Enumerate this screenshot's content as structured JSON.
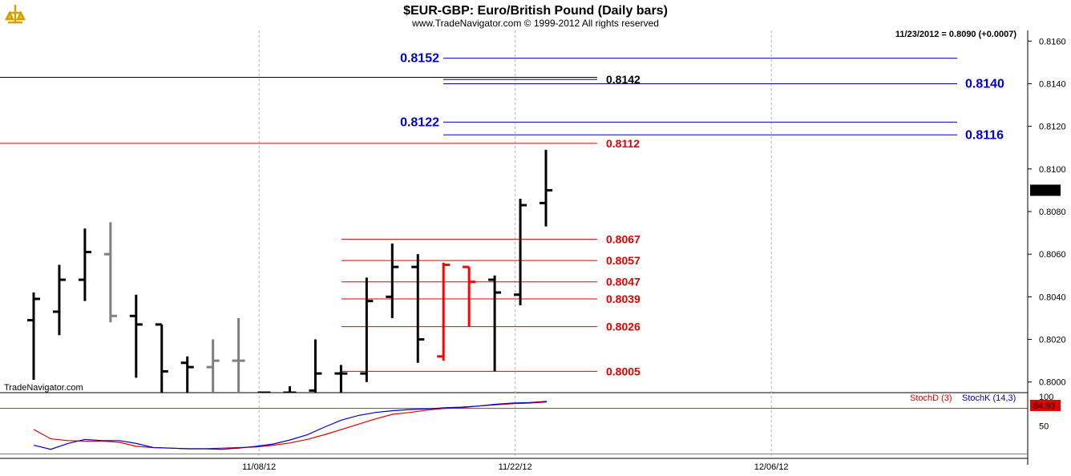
{
  "header": {
    "title": "$EUR-GBP:  Euro/British Pound  (Daily bars)",
    "copyright": "www.TradeNavigator.com © 1999-2012 All rights reserved",
    "last_quote": "11/23/2012 = 0.8090 (+0.0007)",
    "watermark": "TradeNavigator.com"
  },
  "colors": {
    "bar_black": "#000000",
    "bar_gray": "#808080",
    "bar_red": "#ff0000",
    "level_red": "#e00000",
    "level_blue": "#0000cc",
    "level_black": "#000000",
    "stoch_d": "#e00000",
    "stoch_k": "#0000cc",
    "axis_text_price": "#000080"
  },
  "chart_data": [
    {
      "type": "bar",
      "subtype": "ohlc",
      "title": "$EUR-GBP:  Euro/British Pound  (Daily bars)",
      "ylim": [
        0.7995,
        0.8165
      ],
      "yticks": [
        "0.8160",
        "0.8140",
        "0.8120",
        "0.8100",
        "0.8080",
        "0.8060",
        "0.8040",
        "0.8020",
        "0.8000"
      ],
      "last_price_label": "0.8090",
      "x_ticks": [
        {
          "label": "11/08/12",
          "index": 8.8
        },
        {
          "label": "11/22/12",
          "index": 18.8
        },
        {
          "label": "12/06/12",
          "index": 28.8
        }
      ],
      "bars": [
        {
          "o": 0.8029,
          "h": 0.8042,
          "l": 0.8001,
          "c": 0.8039,
          "color": "black"
        },
        {
          "o": 0.8033,
          "h": 0.8055,
          "l": 0.8022,
          "c": 0.8048,
          "color": "black"
        },
        {
          "o": 0.8048,
          "h": 0.8072,
          "l": 0.8038,
          "c": 0.8061,
          "color": "black"
        },
        {
          "o": 0.806,
          "h": 0.8075,
          "l": 0.8028,
          "c": 0.8031,
          "color": "gray"
        },
        {
          "o": 0.8031,
          "h": 0.8041,
          "l": 0.8002,
          "c": 0.8027,
          "color": "black"
        },
        {
          "o": 0.8027,
          "h": 0.8027,
          "l": 0.799,
          "c": 0.8005,
          "color": "black"
        },
        {
          "o": 0.8009,
          "h": 0.8012,
          "l": 0.799,
          "c": 0.8007,
          "color": "black"
        },
        {
          "o": 0.8007,
          "h": 0.802,
          "l": 0.799,
          "c": 0.801,
          "color": "gray"
        },
        {
          "o": 0.801,
          "h": 0.803,
          "l": 0.799,
          "c": 0.801,
          "color": "gray"
        },
        {
          "o": 0.7995,
          "h": 0.7995,
          "l": 0.799,
          "c": 0.7995,
          "color": "black"
        },
        {
          "o": 0.7995,
          "h": 0.7998,
          "l": 0.799,
          "c": 0.7995,
          "color": "black"
        },
        {
          "o": 0.7996,
          "h": 0.802,
          "l": 0.799,
          "c": 0.8004,
          "color": "black"
        },
        {
          "o": 0.8004,
          "h": 0.8008,
          "l": 0.799,
          "c": 0.8004,
          "color": "black"
        },
        {
          "o": 0.8004,
          "h": 0.8049,
          "l": 0.8,
          "c": 0.8038,
          "color": "black"
        },
        {
          "o": 0.804,
          "h": 0.8065,
          "l": 0.803,
          "c": 0.8054,
          "color": "black"
        },
        {
          "o": 0.8054,
          "h": 0.806,
          "l": 0.8009,
          "c": 0.802,
          "color": "black"
        },
        {
          "o": 0.8012,
          "h": 0.8056,
          "l": 0.801,
          "c": 0.8055,
          "color": "red"
        },
        {
          "o": 0.8054,
          "h": 0.8054,
          "l": 0.8026,
          "c": 0.8047,
          "color": "red"
        },
        {
          "o": 0.8048,
          "h": 0.805,
          "l": 0.8005,
          "c": 0.8042,
          "color": "black"
        },
        {
          "o": 0.8041,
          "h": 0.8086,
          "l": 0.8036,
          "c": 0.8083,
          "color": "black"
        },
        {
          "o": 0.8084,
          "h": 0.8109,
          "l": 0.8073,
          "c": 0.809,
          "color": "black"
        }
      ],
      "levels": [
        {
          "value": 0.8152,
          "label": "0.8152",
          "color": "blue",
          "label_side": "left",
          "span": "mid"
        },
        {
          "value": 0.8143,
          "label": "",
          "color": "black",
          "label_side": "none",
          "span": "full-left"
        },
        {
          "value": 0.8142,
          "label": "0.8142",
          "color": "black",
          "label_side": "right",
          "span": "mid-short"
        },
        {
          "value": 0.814,
          "label": "0.8140",
          "color": "blue",
          "label_side": "far-right",
          "span": "mid"
        },
        {
          "value": 0.8122,
          "label": "0.8122",
          "color": "blue",
          "label_side": "left",
          "span": "mid"
        },
        {
          "value": 0.8116,
          "label": "0.8116",
          "color": "blue",
          "label_side": "far-right",
          "span": "mid"
        },
        {
          "value": 0.8112,
          "label": "0.8112",
          "color": "red",
          "label_side": "right",
          "span": "full-left"
        },
        {
          "value": 0.8067,
          "label": "0.8067",
          "color": "red",
          "label_side": "right",
          "span": "retrace"
        },
        {
          "value": 0.8057,
          "label": "0.8057",
          "color": "red",
          "label_side": "right",
          "span": "retrace"
        },
        {
          "value": 0.8047,
          "label": "0.8047",
          "color": "red",
          "label_side": "right",
          "span": "retrace"
        },
        {
          "value": 0.8039,
          "label": "0.8039",
          "color": "red",
          "label_side": "right",
          "span": "retrace"
        },
        {
          "value": 0.8026,
          "label": "0.8026",
          "color": "red",
          "label_side": "right",
          "span": "retrace"
        },
        {
          "value": 0.8005,
          "label": "0.8005",
          "color": "red",
          "label_side": "right",
          "span": "retrace"
        }
      ]
    },
    {
      "type": "line",
      "title": "",
      "ylim": [
        0,
        100
      ],
      "yticks": [
        "100",
        "50"
      ],
      "reference_line": 80,
      "last_value_label": "84.93",
      "series": [
        {
          "name": "StochD (3)",
          "color": "red",
          "values": [
            44,
            28,
            25,
            24,
            24,
            22,
            15,
            13,
            12,
            11,
            11,
            12,
            13,
            14,
            17,
            21,
            27,
            35,
            44,
            53,
            62,
            70,
            73,
            77,
            80,
            81,
            84,
            86,
            88,
            89,
            91
          ]
        },
        {
          "name": "StochK (14,3)",
          "color": "blue",
          "values": [
            17,
            10,
            20,
            27,
            25,
            25,
            20,
            13,
            12,
            11,
            11,
            10,
            12,
            15,
            19,
            26,
            35,
            48,
            60,
            68,
            73,
            76,
            78,
            79,
            81,
            82,
            84,
            87,
            89,
            90,
            92
          ]
        }
      ]
    }
  ]
}
